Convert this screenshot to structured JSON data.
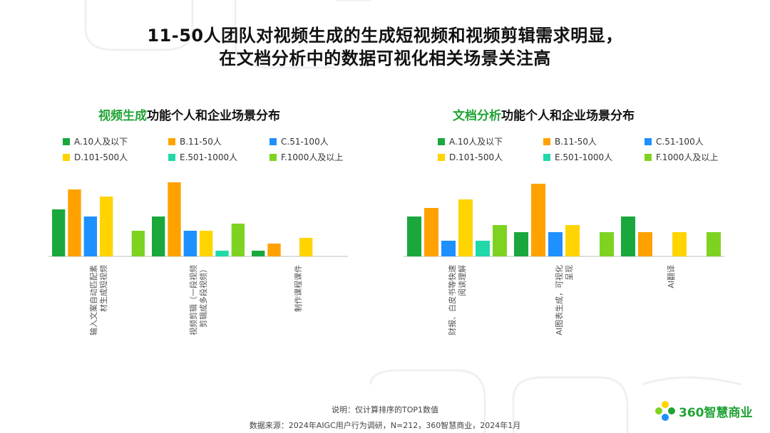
{
  "title": {
    "line1": "11-50人团队对视频生成的生成短视频和视频剪辑需求明显，",
    "line2": "在文档分析中的数据可视化相关场景关注高"
  },
  "legend": {
    "entries": [
      {
        "label": "A.10人及以下",
        "color": "#1aa83c"
      },
      {
        "label": "B.11-50人",
        "color": "#ffa200"
      },
      {
        "label": "C.51-100人",
        "color": "#1e90ff"
      },
      {
        "label": "D.101-500人",
        "color": "#ffd400"
      },
      {
        "label": "E.501-1000人",
        "color": "#20d8a8"
      },
      {
        "label": "F.1000人及以上",
        "color": "#7ed321"
      }
    ]
  },
  "chart_data": [
    {
      "type": "bar",
      "title_highlight": "视频生成",
      "title_rest": "功能个人和企业场景分布",
      "categories": [
        "输入文案自动匹配素材生成短视频",
        "视频剪辑（一段视频剪辑成多段视频）",
        "制作课程课件"
      ],
      "category_lines": [
        [
          "输入文案自动匹配素",
          "材生成短视频"
        ],
        [
          "视频剪辑（一段视频",
          "剪辑成多段视频）"
        ],
        [
          "制作课程课件"
        ]
      ],
      "series": [
        {
          "name": "A.10人及以下",
          "values": [
            33,
            28,
            4
          ]
        },
        {
          "name": "B.11-50人",
          "values": [
            47,
            52,
            9
          ]
        },
        {
          "name": "C.51-100人",
          "values": [
            28,
            18,
            0
          ]
        },
        {
          "name": "D.101-500人",
          "values": [
            42,
            18,
            13
          ]
        },
        {
          "name": "E.501-1000人",
          "values": [
            0,
            4,
            0
          ]
        },
        {
          "name": "F.1000人及以上",
          "values": [
            18,
            23,
            0
          ]
        }
      ],
      "ylim": [
        0,
        55
      ]
    },
    {
      "type": "bar",
      "title_highlight": "文档分析",
      "title_rest": "功能个人和企业场景分布",
      "categories": [
        "财报、白皮书等快速阅读理解",
        "AI图表生成，可视化呈现",
        "AI翻译"
      ],
      "category_lines": [
        [
          "财报、白皮书等快速",
          "阅读理解"
        ],
        [
          "AI图表生成，可视化",
          "呈现"
        ],
        [
          "AI翻译"
        ]
      ],
      "series": [
        {
          "name": "A.10人及以下",
          "values": [
            28,
            17,
            28
          ]
        },
        {
          "name": "B.11-50人",
          "values": [
            34,
            51,
            17
          ]
        },
        {
          "name": "C.51-100人",
          "values": [
            11,
            17,
            0
          ]
        },
        {
          "name": "D.101-500人",
          "values": [
            40,
            22,
            17
          ]
        },
        {
          "name": "E.501-1000人",
          "values": [
            11,
            0,
            0
          ]
        },
        {
          "name": "F.1000人及以上",
          "values": [
            22,
            17,
            17
          ]
        }
      ],
      "ylim": [
        0,
        55
      ]
    }
  ],
  "footer": {
    "note": "说明：仅计算排序的TOP1数值",
    "source": "数据来源：2024年AIGC用户行为调研，N=212，360智慧商业，2024年1月",
    "logo_text": "360智慧商业"
  }
}
